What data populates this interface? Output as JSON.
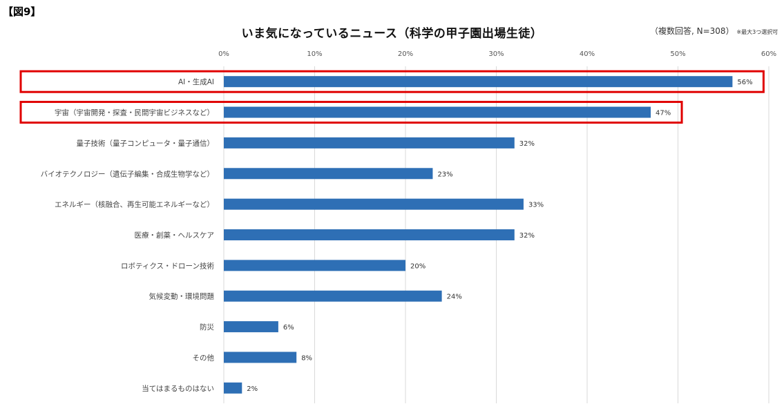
{
  "figure_label": "【図9】",
  "chart_data": {
    "type": "bar",
    "orientation": "horizontal",
    "title": "いま気になっているニュース（科学の甲子園出場生徒）",
    "note": "（複数回答, N=308）",
    "note_small": "※最大3つ選択可",
    "xlim": [
      0,
      60
    ],
    "ticks": [
      "0%",
      "10%",
      "20%",
      "30%",
      "40%",
      "50%",
      "60%"
    ],
    "categories": [
      "AI・生成AI",
      "宇宙（宇宙開発・探査・民間宇宙ビジネスなど）",
      "量子技術（量子コンピュータ・量子通信）",
      "バイオテクノロジー（遺伝子編集・合成生物学など）",
      "エネルギー（核融合、再生可能エネルギーなど）",
      "医療・創薬・ヘルスケア",
      "ロボティクス・ドローン技術",
      "気候変動・環境問題",
      "防災",
      "その他",
      "当てはまるものはない"
    ],
    "values": [
      56,
      47,
      32,
      23,
      33,
      32,
      20,
      24,
      6,
      8,
      2
    ],
    "data_labels": [
      "56%",
      "47%",
      "32%",
      "23%",
      "33%",
      "32%",
      "20%",
      "24%",
      "6%",
      "8%",
      "2%"
    ],
    "highlighted": [
      "AI・生成AI",
      "宇宙（宇宙開発・探査・民間宇宙ビジネスなど）"
    ],
    "grid": true,
    "colors": {
      "bar": "#2e6fb5",
      "highlight_box": "#e00000",
      "grid": "#d9d9d9"
    }
  }
}
